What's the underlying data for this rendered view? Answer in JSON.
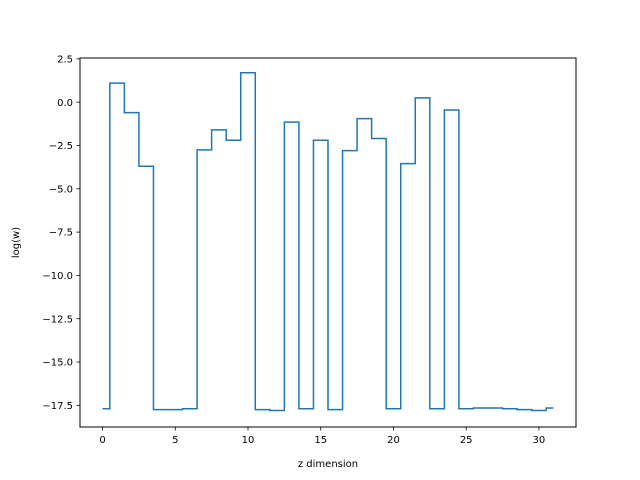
{
  "chart_data": {
    "type": "line",
    "drawstyle": "steps-mid",
    "title": "",
    "xlabel": "z dimension",
    "ylabel": "log(w)",
    "xlim": [
      -1.55,
      32.55
    ],
    "ylim": [
      -18.75,
      2.55
    ],
    "grid": false,
    "x_ticks": [
      0,
      5,
      10,
      15,
      20,
      25,
      30
    ],
    "x_tick_labels": [
      "0",
      "5",
      "10",
      "15",
      "20",
      "25",
      "30"
    ],
    "y_ticks": [
      2.5,
      0,
      -2.5,
      -5,
      -7.5,
      -10,
      -12.5,
      -15,
      -17.5
    ],
    "y_tick_labels": [
      "2.5",
      "0.0",
      "−2.5",
      "−5.0",
      "−7.5",
      "−10.0",
      "−12.5",
      "−15.0",
      "−17.5"
    ],
    "colors": {
      "series": "#1f77b4"
    },
    "x": [
      0,
      1,
      2,
      3,
      4,
      5,
      6,
      7,
      8,
      9,
      10,
      11,
      12,
      13,
      14,
      15,
      16,
      17,
      18,
      19,
      20,
      21,
      22,
      23,
      24,
      25,
      26,
      27,
      28,
      29,
      30,
      31
    ],
    "values": [
      -17.7,
      1.1,
      -0.6,
      -3.7,
      -17.75,
      -17.75,
      -17.7,
      -2.75,
      -1.6,
      -2.2,
      1.7,
      -17.75,
      -17.8,
      -1.15,
      -17.7,
      -2.2,
      -17.75,
      -2.8,
      -0.95,
      -2.1,
      -17.7,
      -3.55,
      0.25,
      -17.7,
      -0.45,
      -17.7,
      -17.65,
      -17.65,
      -17.7,
      -17.75,
      -17.8,
      -17.65
    ]
  }
}
